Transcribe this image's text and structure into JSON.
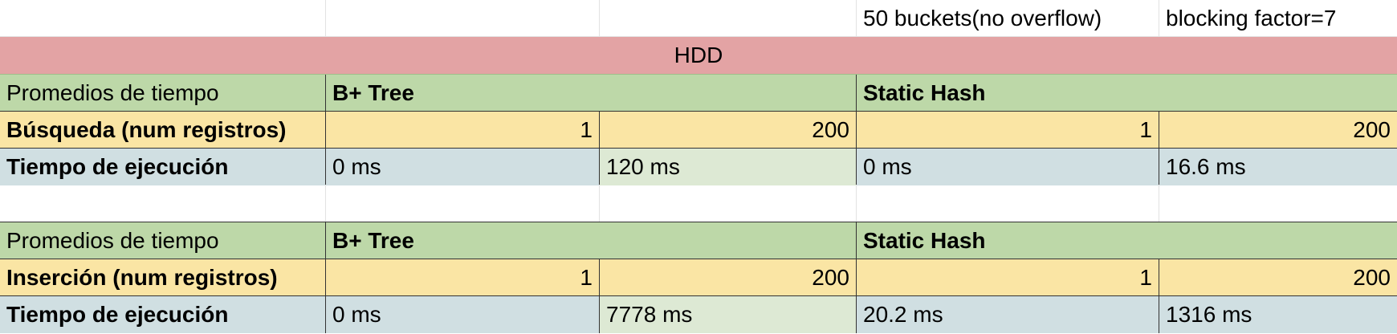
{
  "colors": {
    "hdd_banner": "#e3a3a4",
    "header_green": "#bdd8a8",
    "count_yellow": "#fae5a4",
    "time_blue": "#d0dfe2",
    "time_light_green": "#dde9d4",
    "white": "#ffffff"
  },
  "top_notes": {
    "buckets": "50 buckets(no overflow)",
    "blocking": "blocking factor=7"
  },
  "banner": {
    "label": "HDD"
  },
  "search_table": {
    "header_label": "Promedios de tiempo",
    "btree_label": "B+ Tree",
    "hash_label": "Static Hash",
    "count_label": "Búsqueda (num registros)",
    "counts": [
      "1",
      "200",
      "1",
      "200"
    ],
    "time_label": "Tiempo de ejecución",
    "times": [
      "0 ms",
      "120 ms",
      "0 ms",
      "16.6 ms"
    ]
  },
  "insert_table": {
    "header_label": "Promedios de tiempo",
    "btree_label": "B+ Tree",
    "hash_label": "Static Hash",
    "count_label": "Inserción (num registros)",
    "counts": [
      "1",
      "200",
      "1",
      "200"
    ],
    "time_label": "Tiempo de ejecución",
    "times": [
      "0 ms",
      "7778 ms",
      "20.2 ms",
      "1316 ms"
    ]
  }
}
